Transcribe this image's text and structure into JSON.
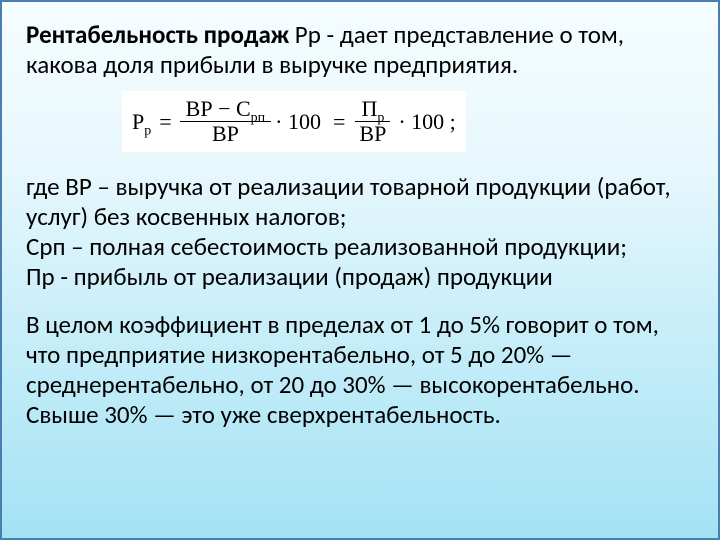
{
  "heading": {
    "bold": "Рентабельность продаж",
    "rest": " Рр - дает представление о том, какова доля прибыли в выручке предприятия."
  },
  "formula": {
    "lhs_main": "Р",
    "lhs_sub": "р",
    "f1_num_a": "ВР − С",
    "f1_num_sub": "рп",
    "f1_den": "ВР",
    "f2_num_a": "П",
    "f2_num_sub": "р",
    "f2_den": "ВР",
    "mult": "· 100",
    "tail": "· 100 ;"
  },
  "defs": "где  ВР – выручка от реализации товарной продукции (работ, услуг) без косвенных налогов;\nСрп – полная себестоимость реализованной продукции;\nПр - прибыль от реализации (продаж) продукции",
  "conclusion": "В целом коэффициент в пределах от 1 до 5% говорит о том, что предприятие низкорентабельно, от 5 до 20% — среднерентабельно, от 20 до 30% — высокорентабельно.\nСвыше 30% — это уже сверхрентабельность."
}
